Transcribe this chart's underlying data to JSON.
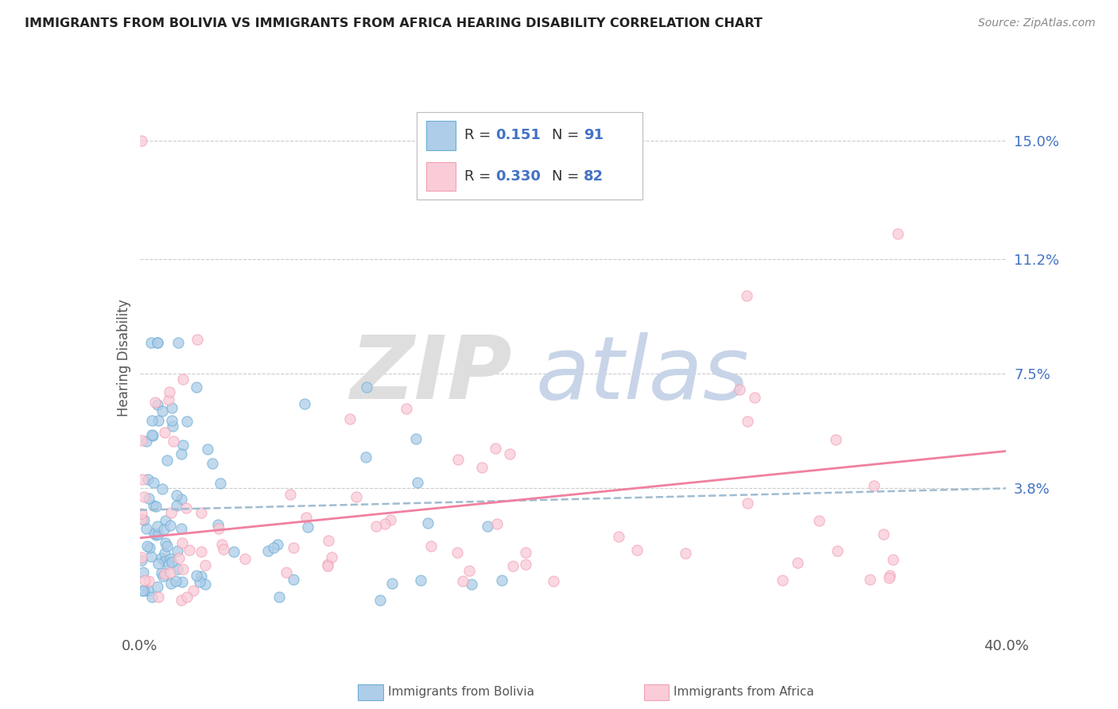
{
  "title": "IMMIGRANTS FROM BOLIVIA VS IMMIGRANTS FROM AFRICA HEARING DISABILITY CORRELATION CHART",
  "source": "Source: ZipAtlas.com",
  "xlabel_bolivia": "Immigrants from Bolivia",
  "xlabel_africa": "Immigrants from Africa",
  "ylabel": "Hearing Disability",
  "xlim": [
    0.0,
    0.4
  ],
  "ylim": [
    -0.008,
    0.168
  ],
  "yticks": [
    0.038,
    0.075,
    0.112,
    0.15
  ],
  "ytick_labels": [
    "3.8%",
    "7.5%",
    "11.2%",
    "15.0%"
  ],
  "xticks": [
    0.0,
    0.4
  ],
  "xtick_labels": [
    "0.0%",
    "40.0%"
  ],
  "bolivia_color": "#6baed6",
  "bolivia_color_fill": "#aecde8",
  "africa_color": "#f4a0b5",
  "africa_color_fill": "#f9ccd8",
  "trend_bolivia_color": "#7bafc8",
  "trend_africa_color": "#f080a0",
  "R_bolivia": 0.151,
  "N_bolivia": 91,
  "R_africa": 0.33,
  "N_africa": 82,
  "bolivia_trend_start_y": 0.031,
  "bolivia_trend_end_y": 0.038,
  "africa_trend_start_y": 0.022,
  "africa_trend_end_y": 0.05
}
